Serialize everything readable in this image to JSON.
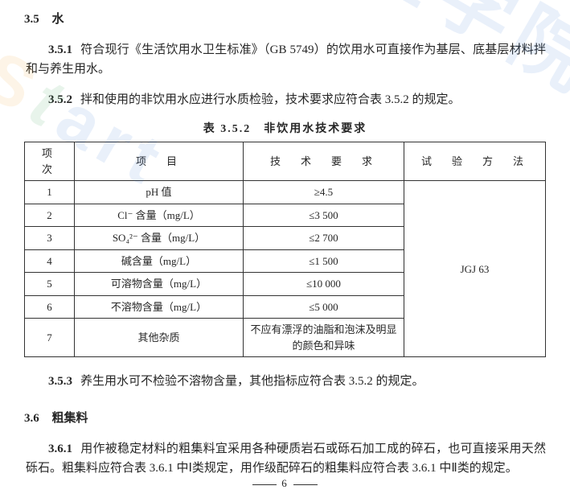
{
  "section35": {
    "num": "3.5",
    "title": "水",
    "p1_num": "3.5.1",
    "p1_text": "符合现行《生活饮用水卫生标准》（GB 5749）的饮用水可直接作为基层、底基层材料拌和与养生用水。",
    "p2_num": "3.5.2",
    "p2_text": "拌和使用的非饮用水应进行水质检验，技术要求应符合表 3.5.2 的规定。",
    "table_caption": "表 3.5.2　非饮用水技术要求",
    "table": {
      "head": {
        "c1": "项　次",
        "c2": "项　目",
        "c3": "技　术　要　求",
        "c4": "试　验　方　法"
      },
      "rows": [
        {
          "n": "1",
          "item": "pH 值",
          "req": "≥4.5"
        },
        {
          "n": "2",
          "item": "Cl⁻ 含量（mg/L）",
          "req": "≤3 500"
        },
        {
          "n": "3",
          "item": "SO₄²⁻ 含量（mg/L）",
          "req": "≤2 700"
        },
        {
          "n": "4",
          "item": "碱含量（mg/L）",
          "req": "≤1 500"
        },
        {
          "n": "5",
          "item": "可溶物含量（mg/L）",
          "req": "≤10 000"
        },
        {
          "n": "6",
          "item": "不溶物含量（mg/L）",
          "req": "≤5 000"
        },
        {
          "n": "7",
          "item": "其他杂质",
          "req": "不应有漂浮的油脂和泡沫及明显的颜色和异味"
        }
      ],
      "test_method": "JGJ 63"
    },
    "p3_num": "3.5.3",
    "p3_text": "养生用水可不检验不溶物含量，其他指标应符合表 3.5.2 的规定。"
  },
  "section36": {
    "num": "3.6",
    "title": "粗集料",
    "p1_num": "3.6.1",
    "p1_text": "用作被稳定材料的粗集料宜采用各种硬质岩石或砾石加工成的碎石，也可直接采用天然砾石。粗集料应符合表 3.6.1 中Ⅰ类规定，用作级配碎石的粗集料应符合表 3.6.1 中Ⅱ类的规定。"
  },
  "page_number": "6",
  "watermarks": {
    "top_right": "程学院",
    "left_s": "S",
    "left_t": "t",
    "left_rest": "art"
  }
}
